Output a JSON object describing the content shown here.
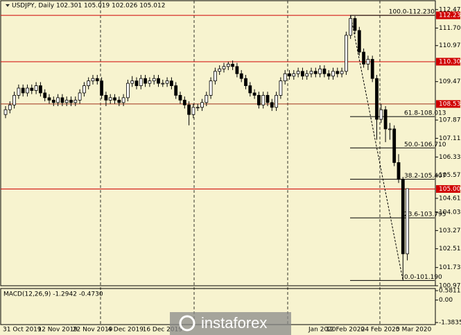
{
  "chart_data": {
    "type": "candlestick",
    "title": "USDJPY, Daily  102.301 105.019 102.026 105.012",
    "watermark": "instaforex",
    "categories": [
      "31 Oct 2019",
      null,
      null,
      null,
      null,
      null,
      null,
      null,
      "12 Nov 2019",
      null,
      null,
      null,
      null,
      null,
      null,
      null,
      "22 Nov 2019",
      null,
      null,
      null,
      null,
      null,
      null,
      null,
      "4 Dec 2019",
      null,
      null,
      null,
      null,
      null,
      null,
      null,
      "16 Dec 2019",
      null,
      null,
      null,
      null,
      null,
      null,
      null,
      null,
      null,
      null,
      null,
      null,
      null,
      null,
      null,
      null,
      null,
      null,
      null,
      null,
      null,
      null,
      null,
      null,
      null,
      null,
      null,
      null,
      null,
      null,
      null,
      null,
      null,
      null,
      null,
      null,
      null,
      "Jan 2020",
      null,
      null,
      null,
      "12 Feb 2020",
      null,
      null,
      null,
      null,
      null,
      null,
      null,
      "24 Feb 2020",
      null,
      null,
      null,
      null,
      null,
      null,
      null,
      "5 Mar 2020",
      null,
      null,
      null
    ],
    "ohlc": [
      [
        108.1,
        108.45,
        107.95,
        108.3
      ],
      [
        108.3,
        108.65,
        108.15,
        108.5
      ],
      [
        108.5,
        109.05,
        108.35,
        108.9
      ],
      [
        108.9,
        109.35,
        108.75,
        109.2
      ],
      [
        109.2,
        109.35,
        108.85,
        109.0
      ],
      [
        109.0,
        109.35,
        108.85,
        109.2
      ],
      [
        109.2,
        109.35,
        108.95,
        109.1
      ],
      [
        109.1,
        109.45,
        108.95,
        109.3
      ],
      [
        109.3,
        109.45,
        108.85,
        109.0
      ],
      [
        109.0,
        109.15,
        108.65,
        108.8
      ],
      [
        108.8,
        108.95,
        108.55,
        108.7
      ],
      [
        108.7,
        108.85,
        108.45,
        108.6
      ],
      [
        108.6,
        108.95,
        108.45,
        108.8
      ],
      [
        108.8,
        108.95,
        108.45,
        108.6
      ],
      [
        108.6,
        108.85,
        108.45,
        108.7
      ],
      [
        108.7,
        108.85,
        108.45,
        108.6
      ],
      [
        108.6,
        108.85,
        108.45,
        108.7
      ],
      [
        108.7,
        109.15,
        108.55,
        109.0
      ],
      [
        109.0,
        109.45,
        108.85,
        109.3
      ],
      [
        109.3,
        109.65,
        109.15,
        109.5
      ],
      [
        109.5,
        109.75,
        109.35,
        109.6
      ],
      [
        109.6,
        109.75,
        109.35,
        109.5
      ],
      [
        109.5,
        109.65,
        108.75,
        108.9
      ],
      [
        108.9,
        109.05,
        108.45,
        108.7
      ],
      [
        108.7,
        108.95,
        108.55,
        108.8
      ],
      [
        108.8,
        108.95,
        108.55,
        108.7
      ],
      [
        108.7,
        108.85,
        108.45,
        108.6
      ],
      [
        108.6,
        108.95,
        108.45,
        108.8
      ],
      [
        108.8,
        109.55,
        108.65,
        109.4
      ],
      [
        109.4,
        109.7,
        109.25,
        109.5
      ],
      [
        109.5,
        109.65,
        109.15,
        109.3
      ],
      [
        109.3,
        109.75,
        109.15,
        109.6
      ],
      [
        109.6,
        109.75,
        109.25,
        109.4
      ],
      [
        109.4,
        109.65,
        109.25,
        109.5
      ],
      [
        109.5,
        109.75,
        109.35,
        109.6
      ],
      [
        109.6,
        109.75,
        109.25,
        109.4
      ],
      [
        109.4,
        109.55,
        109.25,
        109.4
      ],
      [
        109.4,
        109.65,
        109.25,
        109.5
      ],
      [
        109.5,
        109.65,
        109.15,
        109.3
      ],
      [
        109.3,
        109.45,
        108.75,
        108.9
      ],
      [
        108.9,
        109.05,
        108.55,
        108.7
      ],
      [
        108.7,
        108.85,
        108.35,
        108.5
      ],
      [
        108.5,
        108.65,
        107.65,
        108.1
      ],
      [
        108.1,
        108.55,
        107.95,
        108.4
      ],
      [
        108.4,
        108.55,
        108.25,
        108.4
      ],
      [
        108.4,
        108.75,
        108.25,
        108.6
      ],
      [
        108.6,
        109.05,
        108.45,
        108.9
      ],
      [
        108.9,
        109.65,
        108.75,
        109.5
      ],
      [
        109.5,
        110.05,
        109.35,
        109.9
      ],
      [
        109.9,
        110.15,
        109.75,
        110.0
      ],
      [
        110.0,
        110.25,
        109.85,
        110.1
      ],
      [
        110.1,
        110.3,
        109.95,
        110.2
      ],
      [
        110.2,
        110.35,
        109.95,
        110.1
      ],
      [
        110.1,
        110.25,
        109.65,
        109.8
      ],
      [
        109.8,
        109.95,
        109.45,
        109.6
      ],
      [
        109.6,
        109.75,
        109.15,
        109.3
      ],
      [
        109.3,
        109.45,
        108.85,
        109.0
      ],
      [
        109.0,
        109.15,
        108.75,
        108.9
      ],
      [
        108.9,
        109.05,
        108.35,
        108.5
      ],
      [
        108.5,
        109.05,
        108.35,
        108.9
      ],
      [
        108.9,
        109.05,
        108.45,
        108.6
      ],
      [
        108.6,
        108.75,
        108.25,
        108.4
      ],
      [
        108.4,
        109.05,
        108.25,
        108.9
      ],
      [
        108.9,
        109.65,
        108.75,
        109.5
      ],
      [
        109.5,
        109.95,
        109.35,
        109.8
      ],
      [
        109.8,
        109.95,
        109.55,
        109.7
      ],
      [
        109.7,
        109.95,
        109.55,
        109.8
      ],
      [
        109.8,
        110.05,
        109.65,
        109.9
      ],
      [
        109.9,
        110.05,
        109.55,
        109.7
      ],
      [
        109.7,
        109.95,
        109.55,
        109.8
      ],
      [
        109.8,
        110.05,
        109.65,
        109.9
      ],
      [
        109.9,
        110.05,
        109.65,
        109.8
      ],
      [
        109.8,
        110.15,
        109.65,
        110.0
      ],
      [
        110.0,
        110.15,
        109.65,
        109.8
      ],
      [
        109.8,
        109.95,
        109.55,
        109.7
      ],
      [
        109.7,
        110.05,
        109.55,
        109.9
      ],
      [
        109.9,
        110.05,
        109.65,
        109.8
      ],
      [
        109.8,
        110.05,
        109.65,
        109.9
      ],
      [
        109.9,
        111.55,
        109.75,
        111.4
      ],
      [
        111.4,
        112.23,
        111.25,
        112.1
      ],
      [
        112.1,
        112.2,
        111.45,
        111.6
      ],
      [
        111.6,
        111.75,
        110.55,
        110.7
      ],
      [
        110.7,
        110.85,
        110.05,
        110.2
      ],
      [
        110.2,
        110.55,
        109.95,
        110.4
      ],
      [
        110.4,
        110.55,
        109.45,
        109.6
      ],
      [
        109.6,
        109.75,
        107.05,
        107.9
      ],
      [
        107.9,
        108.55,
        107.75,
        108.3
      ],
      [
        108.3,
        108.45,
        106.95,
        107.5
      ],
      [
        107.5,
        107.75,
        107.05,
        107.5
      ],
      [
        107.5,
        107.65,
        105.95,
        106.1
      ],
      [
        106.1,
        106.45,
        105.25,
        105.4
      ],
      [
        105.4,
        105.5,
        101.19,
        102.3
      ],
      [
        102.301,
        105.019,
        102.026,
        105.012
      ]
    ],
    "ylim": [
      100.97,
      112.84
    ],
    "yticks": [
      {
        "value": 112.47,
        "label": "112.470"
      },
      {
        "value": 111.7,
        "label": "111.700"
      },
      {
        "value": 110.97,
        "label": "110.970"
      },
      {
        "value": 109.47,
        "label": "109.470"
      },
      {
        "value": 107.87,
        "label": "107.870"
      },
      {
        "value": 107.11,
        "label": "107.110"
      },
      {
        "value": 106.33,
        "label": "106.330"
      },
      {
        "value": 105.57,
        "label": "105.570"
      },
      {
        "value": 104.61,
        "label": "104.610"
      },
      {
        "value": 104.03,
        "label": "104.030"
      },
      {
        "value": 103.27,
        "label": "103.270"
      },
      {
        "value": 102.51,
        "label": "102.510"
      },
      {
        "value": 101.73,
        "label": "101.730"
      },
      {
        "value": 100.97,
        "label": "100.970"
      }
    ],
    "levels": [
      {
        "value": 112.23,
        "label": "112.230"
      },
      {
        "value": 110.3,
        "label": "110.300"
      },
      {
        "value": 108.539,
        "label": "108.539"
      },
      {
        "value": 105.0,
        "label": "105.000"
      }
    ],
    "fib": [
      {
        "value": 112.23,
        "label": "100.0-112.230"
      },
      {
        "value": 108.013,
        "label": "61.8-108.013"
      },
      {
        "value": 106.71,
        "label": "50.0-106.710"
      },
      {
        "value": 105.407,
        "label": "38.2-105.407"
      },
      {
        "value": 103.795,
        "label": "23.6-103.795"
      },
      {
        "value": 101.19,
        "label": "0.0-101.190"
      }
    ],
    "macd": {
      "title": "MACD(12,26,9) -1.2942 -0.4730",
      "ylim": [
        -1.51,
        0.71
      ],
      "yticks": [
        0.5811,
        {
          "value": 0,
          "label": "0.00"
        },
        -1.3835
      ]
    }
  }
}
